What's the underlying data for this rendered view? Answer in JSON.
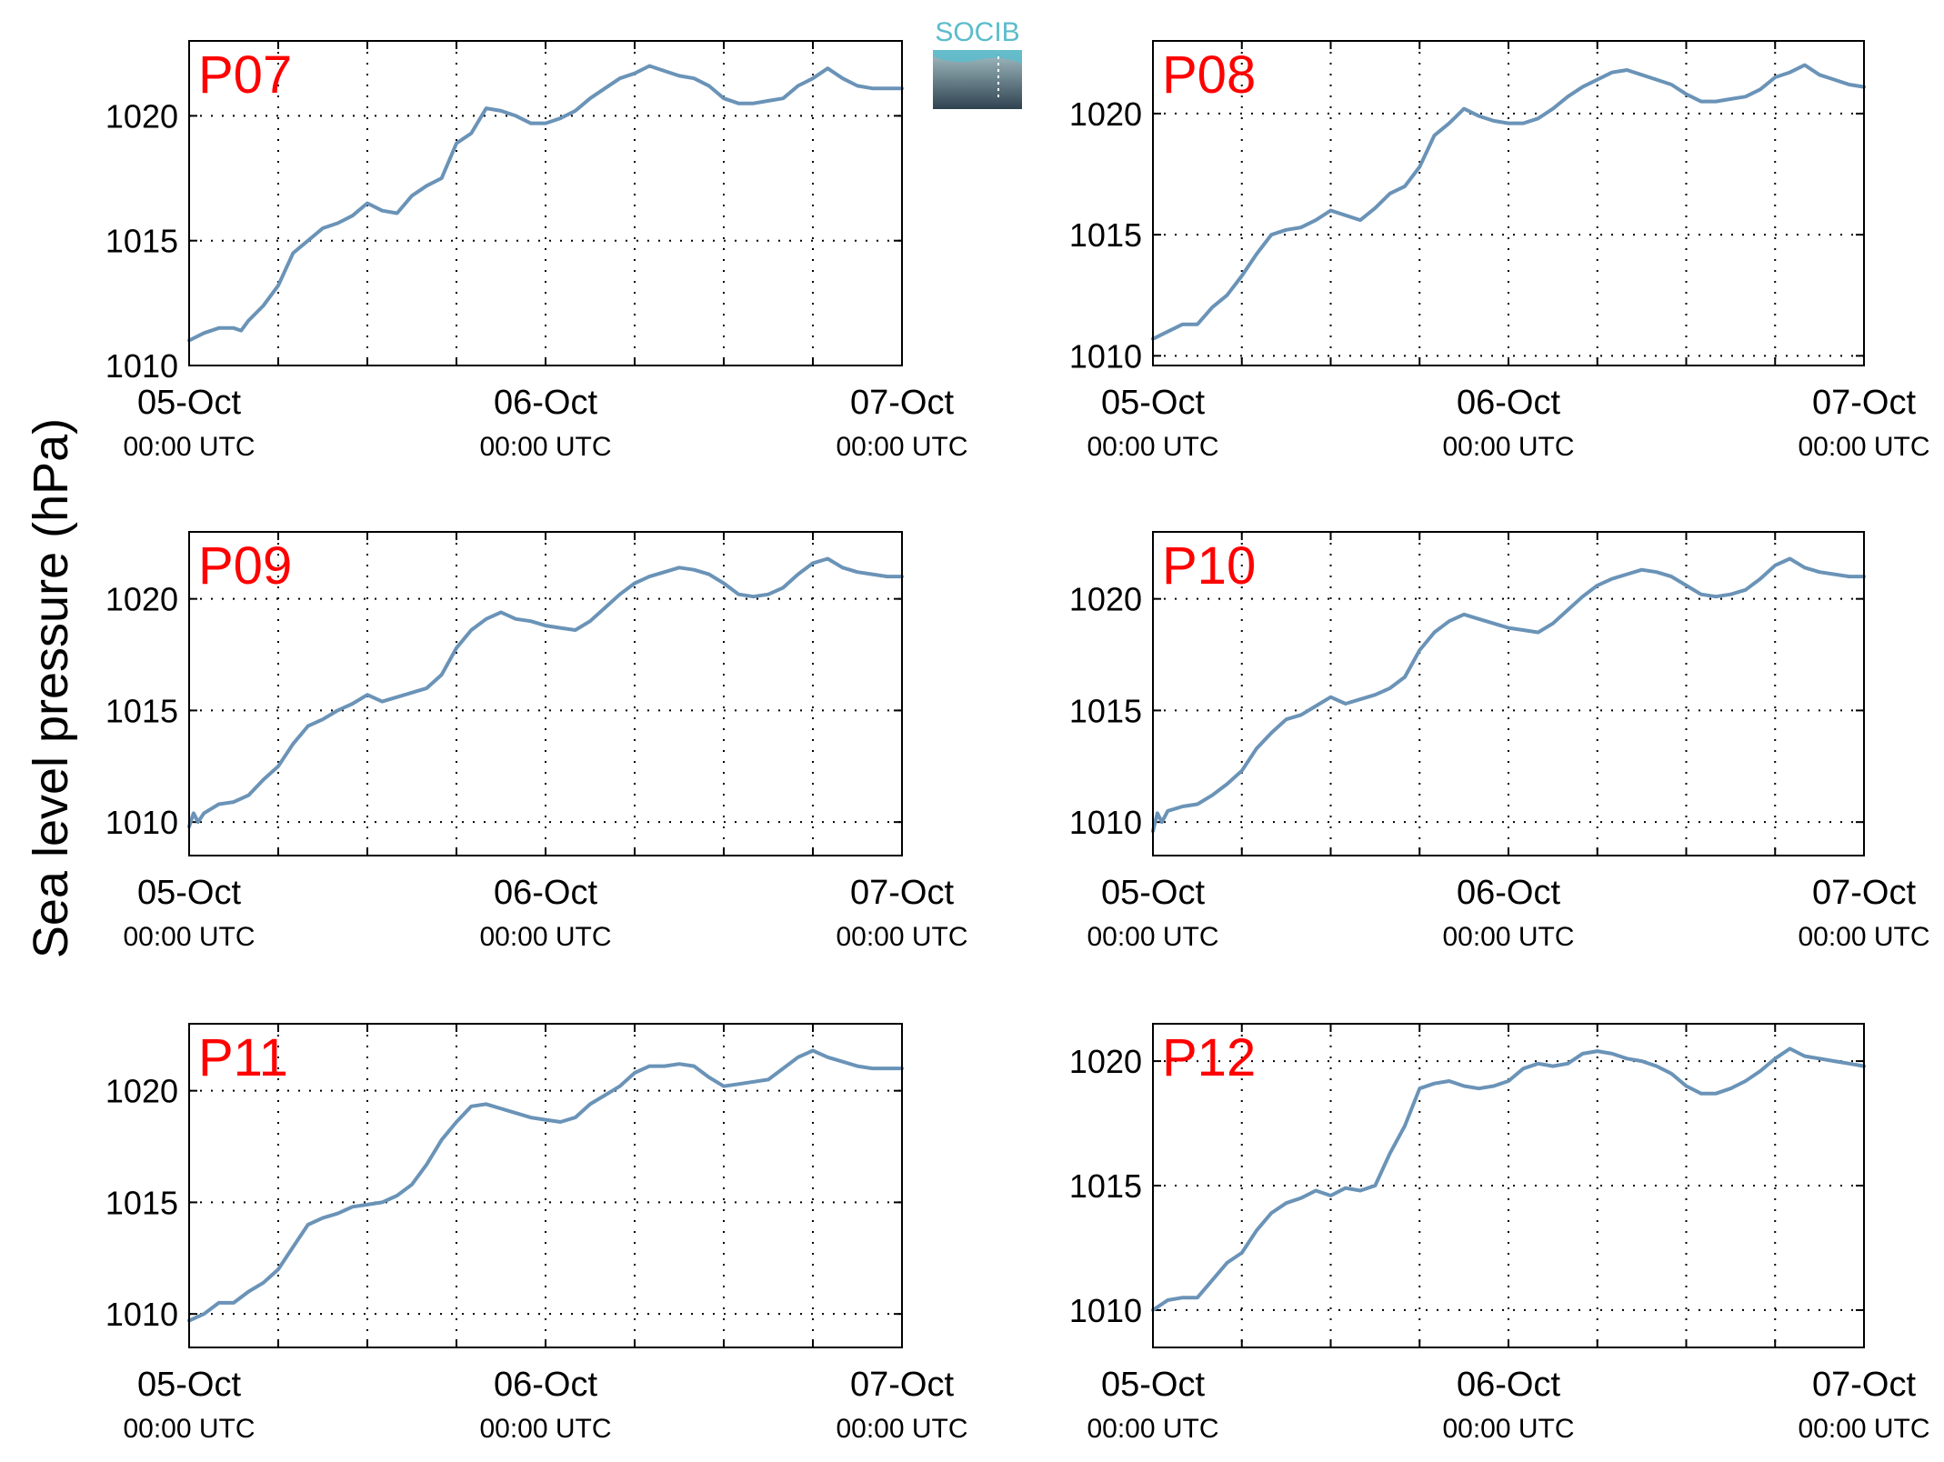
{
  "figure": {
    "ylabel": "Sea level pressure (hPa)",
    "logo_text": "SOCIB",
    "colors": {
      "line": "#6a93b7",
      "panel_label": "#ff0000",
      "axes": "#000000",
      "logo_text": "#5bbccc",
      "logo_top": "#a6c1c7",
      "logo_bottom": "#2f4350"
    }
  },
  "chart_data": [
    {
      "type": "line",
      "panel_label": "P07",
      "x_tick_labels": [
        [
          "05-Oct",
          "00:00 UTC"
        ],
        [
          "06-Oct",
          "00:00 UTC"
        ],
        [
          "07-Oct",
          "00:00 UTC"
        ]
      ],
      "x_tick_hours": [
        0,
        24,
        48
      ],
      "x_grid_hours": [
        6,
        12,
        18,
        24,
        30,
        36,
        42
      ],
      "xlim": [
        0,
        48
      ],
      "ylim": [
        1010,
        1023
      ],
      "y_ticks": [
        1010,
        1015,
        1020
      ],
      "grid": true,
      "x": [
        0,
        1,
        2,
        3,
        3.5,
        4,
        5,
        6,
        7,
        8,
        9,
        10,
        11,
        12,
        13,
        14,
        15,
        16,
        17,
        18,
        19,
        20,
        21,
        22,
        23,
        24,
        25,
        26,
        27,
        28,
        29,
        30,
        31,
        32,
        33,
        34,
        35,
        36,
        37,
        38,
        39,
        40,
        41,
        42,
        43,
        44,
        45,
        46,
        47,
        48
      ],
      "y": [
        1011.0,
        1011.3,
        1011.5,
        1011.5,
        1011.4,
        1011.8,
        1012.4,
        1013.2,
        1014.5,
        1015.0,
        1015.5,
        1015.7,
        1016.0,
        1016.5,
        1016.2,
        1016.1,
        1016.8,
        1017.2,
        1017.5,
        1018.9,
        1019.3,
        1020.3,
        1020.2,
        1020.0,
        1019.7,
        1019.7,
        1019.9,
        1020.2,
        1020.7,
        1021.1,
        1021.5,
        1021.7,
        1022.0,
        1021.8,
        1021.6,
        1021.5,
        1021.2,
        1020.7,
        1020.5,
        1020.5,
        1020.6,
        1020.7,
        1021.2,
        1021.5,
        1021.9,
        1021.5,
        1021.2,
        1021.1,
        1021.1,
        1021.1
      ]
    },
    {
      "type": "line",
      "panel_label": "P08",
      "x_tick_labels": [
        [
          "05-Oct",
          "00:00 UTC"
        ],
        [
          "06-Oct",
          "00:00 UTC"
        ],
        [
          "07-Oct",
          "00:00 UTC"
        ]
      ],
      "x_tick_hours": [
        0,
        24,
        48
      ],
      "x_grid_hours": [
        6,
        12,
        18,
        24,
        30,
        36,
        42
      ],
      "xlim": [
        0,
        48
      ],
      "ylim": [
        1009.6,
        1023
      ],
      "y_ticks": [
        1010,
        1015,
        1020
      ],
      "grid": true,
      "x": [
        0,
        1,
        2,
        3,
        4,
        5,
        6,
        7,
        8,
        9,
        10,
        11,
        12,
        13,
        14,
        15,
        16,
        17,
        18,
        19,
        20,
        21,
        22,
        23,
        24,
        25,
        26,
        27,
        28,
        29,
        30,
        31,
        32,
        33,
        34,
        35,
        36,
        37,
        38,
        39,
        40,
        41,
        42,
        43,
        44,
        45,
        46,
        47,
        48
      ],
      "y": [
        1010.7,
        1011.0,
        1011.3,
        1011.3,
        1012.0,
        1012.5,
        1013.3,
        1014.2,
        1015.0,
        1015.2,
        1015.3,
        1015.6,
        1016.0,
        1015.8,
        1015.6,
        1016.1,
        1016.7,
        1017.0,
        1017.8,
        1019.1,
        1019.6,
        1020.2,
        1019.9,
        1019.7,
        1019.6,
        1019.6,
        1019.8,
        1020.2,
        1020.7,
        1021.1,
        1021.4,
        1021.7,
        1021.8,
        1021.6,
        1021.4,
        1021.2,
        1020.8,
        1020.5,
        1020.5,
        1020.6,
        1020.7,
        1021.0,
        1021.5,
        1021.7,
        1022.0,
        1021.6,
        1021.4,
        1021.2,
        1021.1
      ]
    },
    {
      "type": "line",
      "panel_label": "P09",
      "x_tick_labels": [
        [
          "05-Oct",
          "00:00 UTC"
        ],
        [
          "06-Oct",
          "00:00 UTC"
        ],
        [
          "07-Oct",
          "00:00 UTC"
        ]
      ],
      "x_tick_hours": [
        0,
        24,
        48
      ],
      "x_grid_hours": [
        6,
        12,
        18,
        24,
        30,
        36,
        42
      ],
      "xlim": [
        0,
        48
      ],
      "ylim": [
        1008.5,
        1023
      ],
      "y_ticks": [
        1010,
        1015,
        1020
      ],
      "grid": true,
      "x": [
        0,
        0.3,
        0.6,
        1,
        2,
        3,
        4,
        5,
        6,
        7,
        8,
        9,
        10,
        11,
        12,
        13,
        14,
        15,
        16,
        17,
        18,
        19,
        20,
        21,
        22,
        23,
        24,
        25,
        26,
        27,
        28,
        29,
        30,
        31,
        32,
        33,
        34,
        35,
        36,
        37,
        38,
        39,
        40,
        41,
        42,
        43,
        44,
        45,
        46,
        47,
        48
      ],
      "y": [
        1009.8,
        1010.4,
        1010.0,
        1010.4,
        1010.8,
        1010.9,
        1011.2,
        1011.9,
        1012.5,
        1013.5,
        1014.3,
        1014.6,
        1015.0,
        1015.3,
        1015.7,
        1015.4,
        1015.6,
        1015.8,
        1016.0,
        1016.6,
        1017.8,
        1018.6,
        1019.1,
        1019.4,
        1019.1,
        1019.0,
        1018.8,
        1018.7,
        1018.6,
        1019.0,
        1019.6,
        1020.2,
        1020.7,
        1021.0,
        1021.2,
        1021.4,
        1021.3,
        1021.1,
        1020.7,
        1020.2,
        1020.1,
        1020.2,
        1020.5,
        1021.1,
        1021.6,
        1021.8,
        1021.4,
        1021.2,
        1021.1,
        1021.0,
        1021.0
      ]
    },
    {
      "type": "line",
      "panel_label": "P10",
      "x_tick_labels": [
        [
          "05-Oct",
          "00:00 UTC"
        ],
        [
          "06-Oct",
          "00:00 UTC"
        ],
        [
          "07-Oct",
          "00:00 UTC"
        ]
      ],
      "x_tick_hours": [
        0,
        24,
        48
      ],
      "x_grid_hours": [
        6,
        12,
        18,
        24,
        30,
        36,
        42
      ],
      "xlim": [
        0,
        48
      ],
      "ylim": [
        1008.5,
        1023
      ],
      "y_ticks": [
        1010,
        1015,
        1020
      ],
      "grid": true,
      "x": [
        0,
        0.3,
        0.6,
        1,
        2,
        3,
        4,
        5,
        6,
        7,
        8,
        9,
        10,
        11,
        12,
        13,
        14,
        15,
        16,
        17,
        18,
        19,
        20,
        21,
        22,
        23,
        24,
        25,
        26,
        27,
        28,
        29,
        30,
        31,
        32,
        33,
        34,
        35,
        36,
        37,
        38,
        39,
        40,
        41,
        42,
        43,
        44,
        45,
        46,
        47,
        48
      ],
      "y": [
        1009.6,
        1010.4,
        1010.0,
        1010.5,
        1010.7,
        1010.8,
        1011.2,
        1011.7,
        1012.3,
        1013.3,
        1014.0,
        1014.6,
        1014.8,
        1015.2,
        1015.6,
        1015.3,
        1015.5,
        1015.7,
        1016.0,
        1016.5,
        1017.7,
        1018.5,
        1019.0,
        1019.3,
        1019.1,
        1018.9,
        1018.7,
        1018.6,
        1018.5,
        1018.9,
        1019.5,
        1020.1,
        1020.6,
        1020.9,
        1021.1,
        1021.3,
        1021.2,
        1021.0,
        1020.6,
        1020.2,
        1020.1,
        1020.2,
        1020.4,
        1020.9,
        1021.5,
        1021.8,
        1021.4,
        1021.2,
        1021.1,
        1021.0,
        1021.0
      ]
    },
    {
      "type": "line",
      "panel_label": "P11",
      "x_tick_labels": [
        [
          "05-Oct",
          "00:00 UTC"
        ],
        [
          "06-Oct",
          "00:00 UTC"
        ],
        [
          "07-Oct",
          "00:00 UTC"
        ]
      ],
      "x_tick_hours": [
        0,
        24,
        48
      ],
      "x_grid_hours": [
        6,
        12,
        18,
        24,
        30,
        36,
        42
      ],
      "xlim": [
        0,
        48
      ],
      "ylim": [
        1008.5,
        1023
      ],
      "y_ticks": [
        1010,
        1015,
        1020
      ],
      "grid": true,
      "x": [
        0,
        1,
        2,
        3,
        4,
        5,
        6,
        7,
        8,
        9,
        10,
        11,
        12,
        13,
        14,
        15,
        16,
        17,
        18,
        19,
        20,
        21,
        22,
        23,
        24,
        25,
        26,
        27,
        28,
        29,
        30,
        31,
        32,
        33,
        34,
        35,
        36,
        37,
        38,
        39,
        40,
        41,
        42,
        43,
        44,
        45,
        46,
        47,
        48
      ],
      "y": [
        1009.7,
        1010.0,
        1010.5,
        1010.5,
        1011.0,
        1011.4,
        1012.0,
        1013.0,
        1014.0,
        1014.3,
        1014.5,
        1014.8,
        1014.9,
        1015.0,
        1015.3,
        1015.8,
        1016.7,
        1017.8,
        1018.6,
        1019.3,
        1019.4,
        1019.2,
        1019.0,
        1018.8,
        1018.7,
        1018.6,
        1018.8,
        1019.4,
        1019.8,
        1020.2,
        1020.8,
        1021.1,
        1021.1,
        1021.2,
        1021.1,
        1020.6,
        1020.2,
        1020.3,
        1020.4,
        1020.5,
        1021.0,
        1021.5,
        1021.8,
        1021.5,
        1021.3,
        1021.1,
        1021.0,
        1021.0,
        1021.0
      ]
    },
    {
      "type": "line",
      "panel_label": "P12",
      "x_tick_labels": [
        [
          "05-Oct",
          "00:00 UTC"
        ],
        [
          "06-Oct",
          "00:00 UTC"
        ],
        [
          "07-Oct",
          "00:00 UTC"
        ]
      ],
      "x_tick_hours": [
        0,
        24,
        48
      ],
      "x_grid_hours": [
        6,
        12,
        18,
        24,
        30,
        36,
        42
      ],
      "xlim": [
        0,
        48
      ],
      "ylim": [
        1008.5,
        1021.5
      ],
      "y_ticks": [
        1010,
        1015,
        1020
      ],
      "grid": true,
      "x": [
        0,
        1,
        2,
        3,
        4,
        5,
        6,
        7,
        8,
        9,
        10,
        11,
        12,
        13,
        14,
        15,
        16,
        17,
        18,
        19,
        20,
        21,
        22,
        23,
        24,
        25,
        26,
        27,
        28,
        29,
        30,
        31,
        32,
        33,
        34,
        35,
        36,
        37,
        38,
        39,
        40,
        41,
        42,
        43,
        44,
        45,
        46,
        47,
        48
      ],
      "y": [
        1010.0,
        1010.4,
        1010.5,
        1010.5,
        1011.2,
        1011.9,
        1012.3,
        1013.2,
        1013.9,
        1014.3,
        1014.5,
        1014.8,
        1014.6,
        1014.9,
        1014.8,
        1015.0,
        1016.3,
        1017.4,
        1018.9,
        1019.1,
        1019.2,
        1019.0,
        1018.9,
        1019.0,
        1019.2,
        1019.7,
        1019.9,
        1019.8,
        1019.9,
        1020.3,
        1020.4,
        1020.3,
        1020.1,
        1020.0,
        1019.8,
        1019.5,
        1019.0,
        1018.7,
        1018.7,
        1018.9,
        1019.2,
        1019.6,
        1020.1,
        1020.5,
        1020.2,
        1020.1,
        1020.0,
        1019.9,
        1019.8
      ]
    }
  ]
}
